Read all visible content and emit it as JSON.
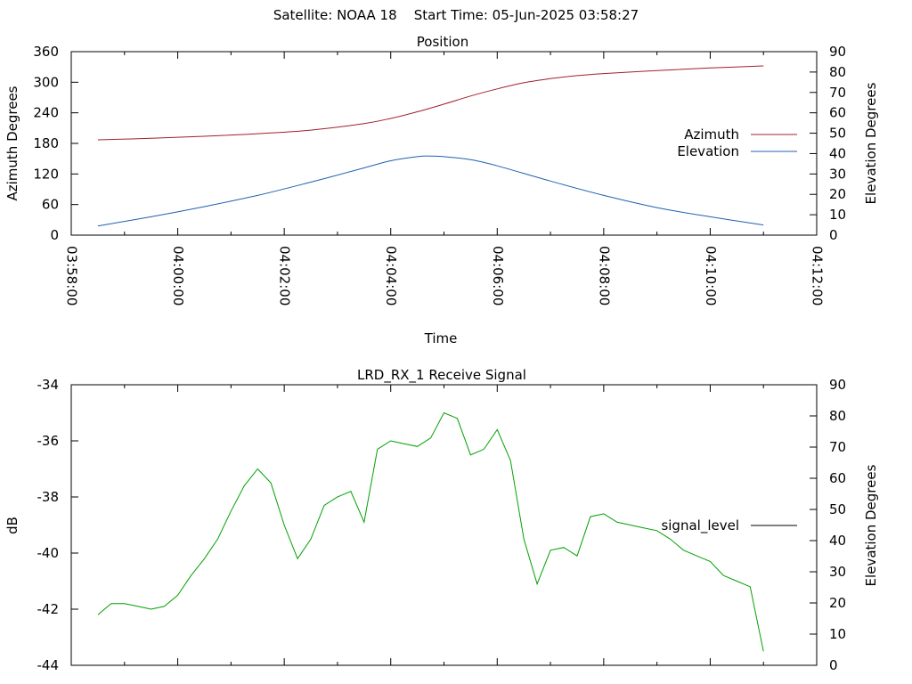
{
  "header": {
    "satellite": "Satellite: NOAA 18",
    "start_time": "Start Time: 05-Jun-2025 03:58:27"
  },
  "chart_data": [
    {
      "type": "line",
      "title": "Position",
      "xlabel": "Time",
      "ylabel": "Azimuth Degrees",
      "y2label": "Elevation Degrees",
      "x_ticks": [
        "03:58:00",
        "04:00:00",
        "04:02:00",
        "04:04:00",
        "04:06:00",
        "04:08:00",
        "04:10:00",
        "04:12:00"
      ],
      "xlim": [
        "03:58:00",
        "04:12:00"
      ],
      "ylim": [
        0,
        360
      ],
      "y_ticks": [
        0,
        60,
        120,
        180,
        240,
        300,
        360
      ],
      "y2lim": [
        0,
        90
      ],
      "y2_ticks": [
        0,
        10,
        20,
        30,
        40,
        50,
        60,
        70,
        80,
        90
      ],
      "legend_position": "right",
      "grid": false,
      "series": [
        {
          "name": "Azimuth",
          "axis": "left",
          "color": "#a0202a",
          "x": [
            "03:58:30",
            "03:59:30",
            "04:00:30",
            "04:01:30",
            "04:02:30",
            "04:03:30",
            "04:04:00",
            "04:04:30",
            "04:05:00",
            "04:05:30",
            "04:06:00",
            "04:06:30",
            "04:07:00",
            "04:07:30",
            "04:08:00",
            "04:09:00",
            "04:10:00",
            "04:11:00"
          ],
          "values": [
            187,
            190,
            194,
            199,
            206,
            219,
            229,
            242,
            257,
            273,
            287,
            299,
            307,
            313,
            317,
            323,
            328,
            332
          ]
        },
        {
          "name": "Elevation",
          "axis": "right",
          "color": "#2060b0",
          "x": [
            "03:58:30",
            "03:59:30",
            "04:00:30",
            "04:01:30",
            "04:02:30",
            "04:03:30",
            "04:04:00",
            "04:04:30",
            "04:04:45",
            "04:05:00",
            "04:05:30",
            "04:06:00",
            "04:07:00",
            "04:08:00",
            "04:09:00",
            "04:10:00",
            "04:11:00"
          ],
          "values": [
            4.5,
            9,
            14,
            19.5,
            26,
            33,
            36.5,
            38.5,
            38.8,
            38.5,
            37,
            34,
            26.5,
            19.5,
            13.5,
            9,
            5
          ]
        }
      ]
    },
    {
      "type": "line",
      "title": "LRD_RX_1 Receive Signal",
      "xlabel": "",
      "ylabel": "dB",
      "y2label": "Elevation Degrees",
      "xlim": [
        "03:58:00",
        "04:12:00"
      ],
      "ylim": [
        -44,
        -34
      ],
      "y_ticks": [
        -44,
        -42,
        -40,
        -38,
        -36,
        -34
      ],
      "y2lim": [
        0,
        90
      ],
      "y2_ticks": [
        0,
        10,
        20,
        30,
        40,
        50,
        60,
        70,
        80,
        90
      ],
      "legend_position": "right",
      "grid": false,
      "series": [
        {
          "name": "signal_level",
          "legend_color": "#000000",
          "color": "#00a000",
          "x": [
            "03:58:30",
            "03:58:45",
            "03:59:00",
            "03:59:15",
            "03:59:30",
            "03:59:45",
            "04:00:00",
            "04:00:15",
            "04:00:30",
            "04:00:45",
            "04:01:00",
            "04:01:15",
            "04:01:30",
            "04:01:45",
            "04:02:00",
            "04:02:15",
            "04:02:30",
            "04:02:45",
            "04:03:00",
            "04:03:15",
            "04:03:30",
            "04:03:45",
            "04:04:00",
            "04:04:15",
            "04:04:30",
            "04:04:45",
            "04:05:00",
            "04:05:15",
            "04:05:30",
            "04:05:45",
            "04:06:00",
            "04:06:15",
            "04:06:30",
            "04:06:45",
            "04:07:00",
            "04:07:15",
            "04:07:30",
            "04:07:45",
            "04:08:00",
            "04:08:15",
            "04:08:30",
            "04:08:45",
            "04:09:00",
            "04:09:15",
            "04:09:30",
            "04:09:45",
            "04:10:00",
            "04:10:15",
            "04:10:30",
            "04:10:45",
            "04:11:00"
          ],
          "values": [
            -42.2,
            -41.8,
            -41.8,
            -41.9,
            -42.0,
            -41.9,
            -41.5,
            -40.8,
            -40.2,
            -39.5,
            -38.5,
            -37.6,
            -37.0,
            -37.5,
            -39.0,
            -40.2,
            -39.5,
            -38.3,
            -38.0,
            -37.8,
            -38.9,
            -36.3,
            -36.0,
            -36.1,
            -36.2,
            -35.9,
            -35.0,
            -35.2,
            -36.5,
            -36.3,
            -35.6,
            -36.7,
            -39.5,
            -41.1,
            -39.9,
            -39.8,
            -40.1,
            -38.7,
            -38.6,
            -38.9,
            -39.0,
            -39.1,
            -39.2,
            -39.5,
            -39.9,
            -40.1,
            -40.3,
            -40.8,
            -41.0,
            -41.2,
            -43.5
          ]
        }
      ]
    }
  ]
}
